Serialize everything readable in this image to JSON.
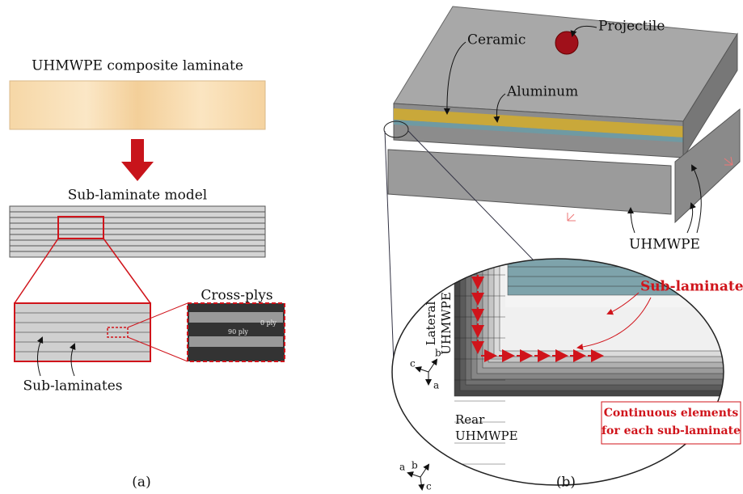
{
  "panel_a": {
    "title": "UHMWPE composite laminate",
    "model_label": "Sub-laminate model",
    "cross_plys_label": "Cross-plys",
    "ply_0": "0 ply",
    "ply_90": "90 ply",
    "sublaminates_label": "Sub-laminates",
    "caption": "(a)"
  },
  "panel_b": {
    "projectile": "Projectile",
    "ceramic": "Ceramic",
    "aluminum": "Aluminum",
    "uhmwpe": "UHMWPE",
    "lateral": [
      "Lateral",
      "UHMWPE"
    ],
    "sublaminates": "Sub-laminates",
    "rear": [
      "Rear",
      "UHMWPE"
    ],
    "axes_lateral": [
      "b",
      "c",
      "a"
    ],
    "axes_rear": [
      "b",
      "a",
      "c"
    ],
    "note": [
      "Continuous elements",
      "for each sub-laminate"
    ],
    "caption": "(b)"
  }
}
